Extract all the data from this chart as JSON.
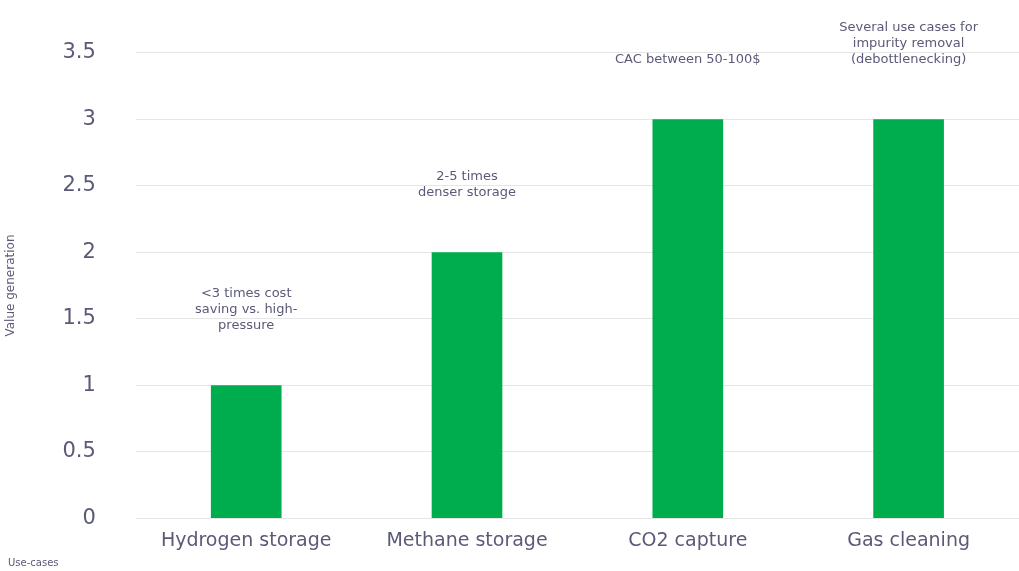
{
  "chart_data": {
    "type": "bar",
    "xlabel": "Use-cases",
    "ylabel": "Value generation",
    "categories": [
      "Hydrogen storage",
      "Methane storage",
      "CO2 capture",
      "Gas cleaning"
    ],
    "values": [
      1,
      2,
      3,
      3
    ],
    "color": "#00ad4e",
    "ylim": [
      0,
      3.5
    ],
    "yticks": [
      0,
      0.5,
      1,
      1.5,
      2,
      2.5,
      3,
      3.5
    ],
    "grid": "y",
    "legend": false,
    "annotations": [
      "<3 times cost\nsaving vs. high-\npressure",
      "2-5 times\ndenser storage",
      "CAC between 50-100$",
      "Several use cases for\nimpurity removal\n(debottlenecking)"
    ]
  }
}
